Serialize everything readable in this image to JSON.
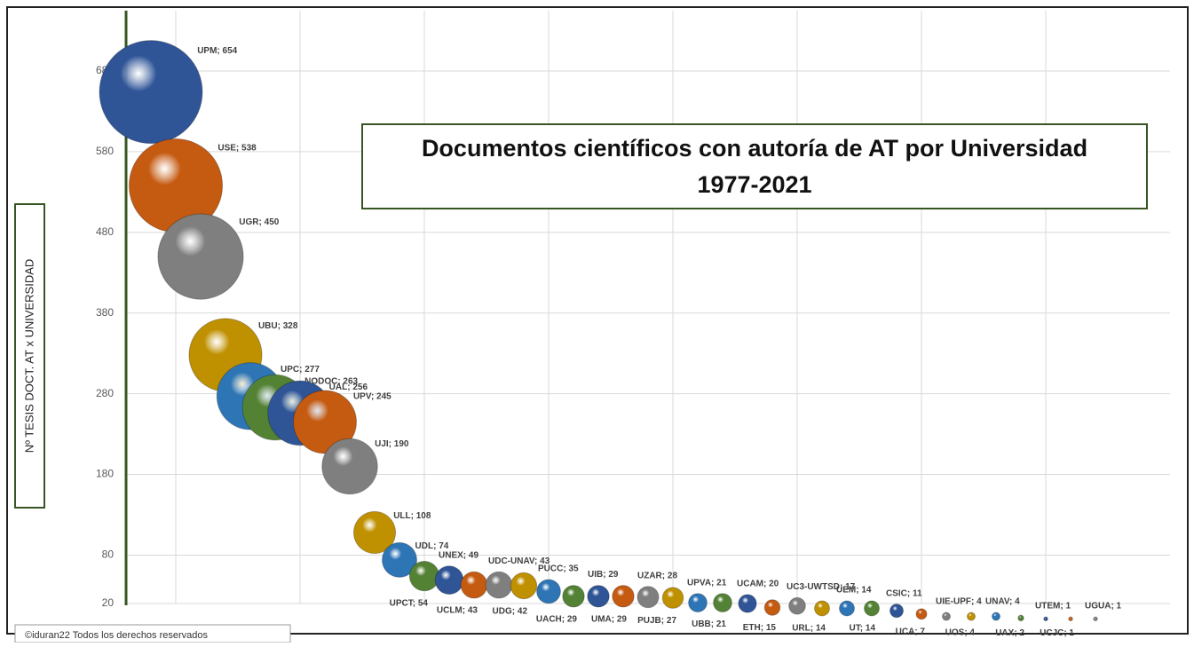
{
  "chart_data": {
    "type": "bubble",
    "title": "Documentos científicos con autoría de AT por Universidad",
    "subtitle": "1977-2021",
    "y_label": "Nº TESIS DOCT. AT x UNIVERSIDAD",
    "footer": "©iduran22 Todos los derechos reservados",
    "x": [
      1,
      2,
      3,
      4,
      5,
      6,
      7,
      8,
      9,
      10,
      11,
      12,
      13,
      14,
      15,
      16,
      17,
      18,
      19,
      20,
      21,
      22,
      23,
      24,
      25,
      26,
      27,
      28,
      29,
      30,
      31,
      32,
      33,
      34,
      35,
      36,
      37,
      38,
      39
    ],
    "values": [
      654,
      538,
      450,
      328,
      277,
      263,
      256,
      245,
      190,
      108,
      74,
      54,
      49,
      43,
      43,
      42,
      35,
      29,
      29,
      29,
      28,
      27,
      21,
      21,
      20,
      15,
      17,
      14,
      14,
      14,
      11,
      7,
      4,
      4,
      4,
      2,
      1,
      1,
      1
    ],
    "value_labels": [
      "UPM; 654",
      "USE; 538",
      "UGR; 450",
      "UBU; 328",
      "UPC; 277",
      "NODOC; 263",
      "UAL; 256",
      "UPV; 245",
      "UJI; 190",
      "ULL; 108",
      "UDL; 74",
      "UPCT; 54",
      "UNEX; 49",
      "UCLM; 43",
      "UDC-UNAV; 43",
      "UDG; 42",
      "PUCC; 35",
      "UACH; 29",
      "UIB; 29",
      "UMA; 29",
      "UZAR; 28",
      "PUJB; 27",
      "UPVA; 21",
      "UBB; 21",
      "UCAM; 20",
      "ETH; 15",
      "UC3-UWTSD; 17",
      "URL; 14",
      "UEM; 14",
      "UT; 14",
      "CSIC; 11",
      "UCA; 7",
      "UIE-UPF; 4",
      "UOS; 4",
      "UNAV; 4",
      "UAX; 2",
      "UTEM; 1",
      "UCJC; 1",
      "UGUA; 1"
    ],
    "colors": [
      "#2f5597",
      "#c55a11",
      "#7f7f7f",
      "#bf9000",
      "#2e75b6",
      "#548235"
    ],
    "xlim": [
      0,
      42
    ],
    "xticks": [
      2,
      7,
      12,
      17,
      22,
      27,
      32,
      37
    ],
    "ylim": [
      20,
      680
    ],
    "yticks": [
      20,
      80,
      180,
      280,
      380,
      480,
      580,
      680
    ],
    "grid": true
  }
}
